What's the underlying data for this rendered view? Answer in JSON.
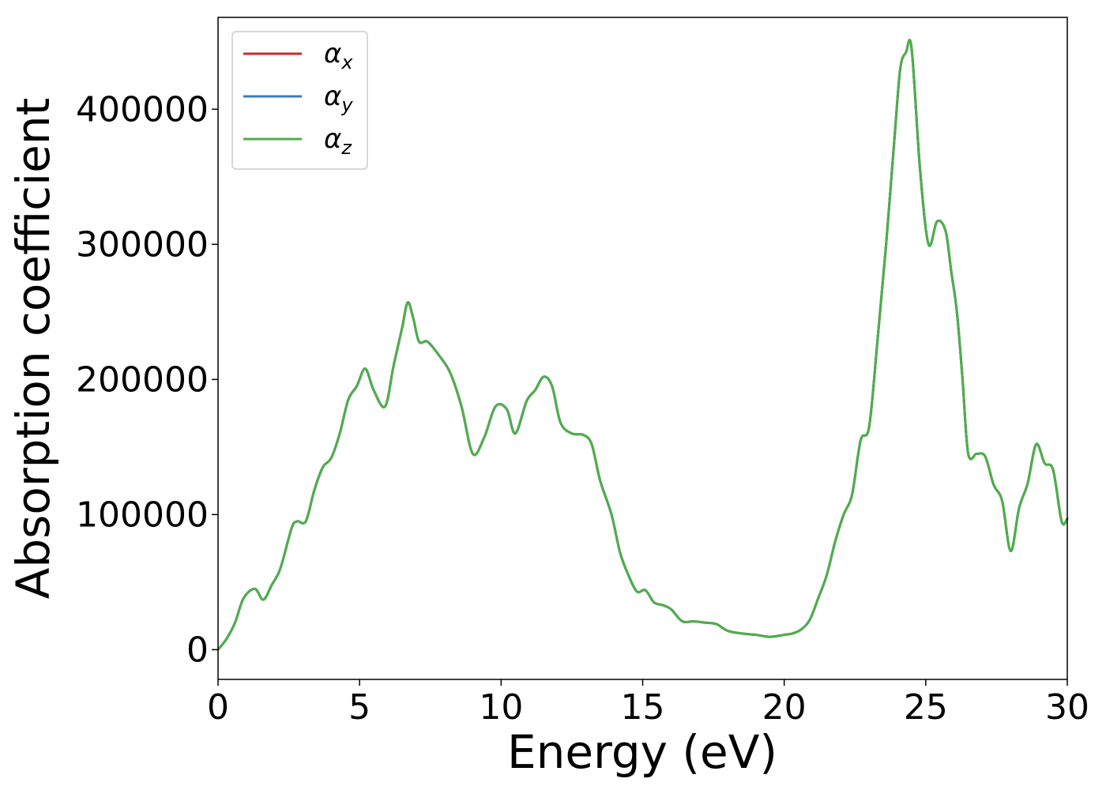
{
  "chart_data": {
    "type": "line",
    "title": "",
    "xlabel": "Energy (eV)",
    "ylabel": "Absorption coefficient",
    "xlim": [
      0,
      30
    ],
    "ylim": [
      -22000,
      468000
    ],
    "xticks": [
      0,
      5,
      10,
      15,
      20,
      25,
      30
    ],
    "yticks": [
      0,
      100000,
      200000,
      300000,
      400000
    ],
    "grid": false,
    "legend_position": "top-left",
    "colors": {
      "alpha_x": "#d62728",
      "alpha_y": "#377eb8",
      "alpha_z": "#4daf4a"
    },
    "x": [
      0,
      0.3,
      0.6,
      0.9,
      1.3,
      1.6,
      1.9,
      2.2,
      2.6,
      2.8,
      3.1,
      3.4,
      3.7,
      4.0,
      4.3,
      4.6,
      4.9,
      5.2,
      5.5,
      5.9,
      6.2,
      6.5,
      6.7,
      6.9,
      7.1,
      7.4,
      7.8,
      8.2,
      8.6,
      9.0,
      9.4,
      9.8,
      10.2,
      10.5,
      10.9,
      11.2,
      11.5,
      11.8,
      12.1,
      12.5,
      12.9,
      13.2,
      13.5,
      13.9,
      14.2,
      14.5,
      14.8,
      15.1,
      15.4,
      15.7,
      16.0,
      16.4,
      16.8,
      17.2,
      17.6,
      18.0,
      18.5,
      19.0,
      19.5,
      20.0,
      20.3,
      20.6,
      20.9,
      21.2,
      21.5,
      21.8,
      22.1,
      22.4,
      22.7,
      23.0,
      23.3,
      23.6,
      23.9,
      24.1,
      24.3,
      24.5,
      24.8,
      25.1,
      25.4,
      25.7,
      25.9,
      26.1,
      26.3,
      26.5,
      26.8,
      27.1,
      27.4,
      27.7,
      28.0,
      28.3,
      28.6,
      28.9,
      29.2,
      29.5,
      29.8,
      30.0
    ],
    "series": [
      {
        "name": "α_x",
        "color": "#d62728",
        "values": [
          0,
          8000,
          20000,
          38000,
          45000,
          37000,
          48000,
          60000,
          90000,
          95000,
          95000,
          118000,
          135000,
          142000,
          160000,
          185000,
          195000,
          208000,
          192000,
          180000,
          210000,
          238000,
          257000,
          245000,
          228000,
          228000,
          218000,
          205000,
          180000,
          145000,
          157000,
          180000,
          178000,
          160000,
          184000,
          192000,
          202000,
          195000,
          168000,
          160000,
          159000,
          152000,
          125000,
          100000,
          72000,
          55000,
          43000,
          44000,
          35000,
          33000,
          30000,
          21000,
          21000,
          20000,
          19000,
          14000,
          12000,
          11000,
          9500,
          11000,
          12000,
          15000,
          22000,
          38000,
          55000,
          80000,
          100000,
          115000,
          155000,
          165000,
          230000,
          300000,
          380000,
          430000,
          442000,
          445000,
          355000,
          300000,
          317000,
          310000,
          280000,
          250000,
          200000,
          145000,
          145000,
          143000,
          122000,
          110000,
          73000,
          105000,
          123000,
          152000,
          138000,
          133000,
          95000,
          97000
        ]
      },
      {
        "name": "α_y",
        "color": "#377eb8",
        "values": [
          0,
          8000,
          20000,
          38000,
          45000,
          37000,
          48000,
          60000,
          90000,
          95000,
          95000,
          118000,
          135000,
          142000,
          160000,
          185000,
          195000,
          208000,
          192000,
          180000,
          210000,
          238000,
          257000,
          245000,
          228000,
          228000,
          218000,
          205000,
          180000,
          145000,
          157000,
          180000,
          178000,
          160000,
          184000,
          192000,
          202000,
          195000,
          168000,
          160000,
          159000,
          152000,
          125000,
          100000,
          72000,
          55000,
          43000,
          44000,
          35000,
          33000,
          30000,
          21000,
          21000,
          20000,
          19000,
          14000,
          12000,
          11000,
          9500,
          11000,
          12000,
          15000,
          22000,
          38000,
          55000,
          80000,
          100000,
          115000,
          155000,
          165000,
          230000,
          300000,
          380000,
          430000,
          442000,
          445000,
          355000,
          300000,
          317000,
          310000,
          280000,
          250000,
          200000,
          145000,
          145000,
          143000,
          122000,
          110000,
          73000,
          105000,
          123000,
          152000,
          138000,
          133000,
          95000,
          97000
        ]
      },
      {
        "name": "α_z",
        "color": "#4daf4a",
        "values": [
          0,
          8000,
          20000,
          38000,
          45000,
          37000,
          48000,
          60000,
          90000,
          95000,
          95000,
          118000,
          135000,
          142000,
          160000,
          185000,
          195000,
          208000,
          192000,
          180000,
          210000,
          238000,
          257000,
          245000,
          228000,
          228000,
          218000,
          205000,
          180000,
          145000,
          157000,
          180000,
          178000,
          160000,
          184000,
          192000,
          202000,
          195000,
          168000,
          160000,
          159000,
          152000,
          125000,
          100000,
          72000,
          55000,
          43000,
          44000,
          35000,
          33000,
          30000,
          21000,
          21000,
          20000,
          19000,
          14000,
          12000,
          11000,
          9500,
          11000,
          12000,
          15000,
          22000,
          38000,
          55000,
          80000,
          100000,
          115000,
          155000,
          165000,
          230000,
          300000,
          380000,
          430000,
          442000,
          445000,
          355000,
          300000,
          317000,
          310000,
          280000,
          250000,
          200000,
          145000,
          145000,
          143000,
          122000,
          110000,
          73000,
          105000,
          123000,
          152000,
          138000,
          133000,
          95000,
          97000
        ]
      }
    ],
    "legend": [
      {
        "symbol": "α",
        "sub": "x"
      },
      {
        "symbol": "α",
        "sub": "y"
      },
      {
        "symbol": "α",
        "sub": "z"
      }
    ]
  }
}
